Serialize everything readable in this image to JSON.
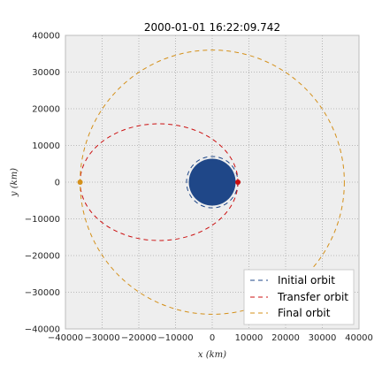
{
  "chart_data": {
    "type": "scatter",
    "title": "2000-01-01 16:22:09.742",
    "xlabel": "x (km)",
    "ylabel": "y (km)",
    "xlim": [
      -40000,
      40000
    ],
    "ylim": [
      -40000,
      40000
    ],
    "x_ticks": [
      -40000,
      -30000,
      -20000,
      -10000,
      0,
      10000,
      20000,
      30000,
      40000
    ],
    "y_ticks": [
      -40000,
      -30000,
      -20000,
      -10000,
      0,
      10000,
      20000,
      30000,
      40000
    ],
    "grid": true,
    "legend_position": "bottom-right",
    "planet": {
      "center": [
        0,
        0
      ],
      "radius": 6378,
      "color": "#1f4788"
    },
    "series": [
      {
        "name": "Initial orbit",
        "shape": "ellipse",
        "center": [
          0,
          0
        ],
        "semi_major": 7000,
        "semi_minor": 7000,
        "color": "#1f4788"
      },
      {
        "name": "Transfer orbit",
        "shape": "ellipse",
        "center": [
          -14500,
          0
        ],
        "semi_major": 21500,
        "semi_minor": 15900,
        "color": "#cc1010"
      },
      {
        "name": "Final orbit",
        "shape": "ellipse",
        "center": [
          0,
          0
        ],
        "semi_major": 36000,
        "semi_minor": 36000,
        "color": "#d4901a"
      }
    ],
    "markers": [
      {
        "x": 7000,
        "y": 0,
        "color": "#cc1010"
      },
      {
        "x": -36000,
        "y": 0,
        "color": "#d4901a"
      }
    ]
  }
}
